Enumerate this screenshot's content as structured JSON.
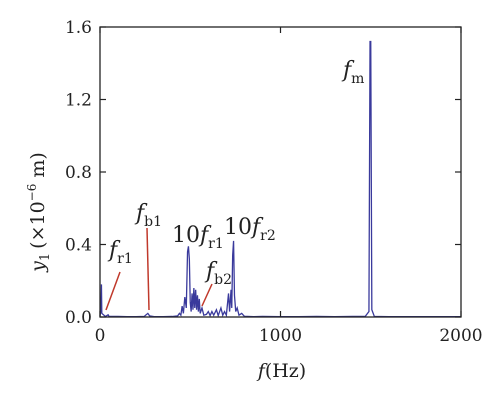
{
  "chart_data": {
    "type": "line",
    "xlabel": {
      "var": "f",
      "unit": "(Hz)"
    },
    "ylabel": {
      "var": "y",
      "sub": "1",
      "unit_pre": "(×10",
      "unit_exp": "−6",
      "unit_post": " m)"
    },
    "xlim": [
      0,
      2000
    ],
    "ylim": [
      0,
      1.6
    ],
    "xticks": [
      0,
      1000,
      2000
    ],
    "xtick_labels": [
      "0",
      "1000",
      "2000"
    ],
    "yticks": [
      0.0,
      0.4,
      0.8,
      1.2,
      1.6
    ],
    "ytick_labels": [
      "0.0",
      "0.4",
      "0.8",
      "1.2",
      "1.6"
    ],
    "grid": false,
    "series": [
      {
        "color": "#3a3a9c",
        "points": [
          [
            0,
            0.005
          ],
          [
            5,
            0.04
          ],
          [
            8,
            0.18
          ],
          [
            10,
            0.02
          ],
          [
            30,
            0.003
          ],
          [
            45,
            0.012
          ],
          [
            50,
            0.003
          ],
          [
            100,
            0.003
          ],
          [
            150,
            0.002
          ],
          [
            200,
            0.002
          ],
          [
            245,
            0.003
          ],
          [
            255,
            0.012
          ],
          [
            265,
            0.02
          ],
          [
            275,
            0.006
          ],
          [
            300,
            0.002
          ],
          [
            350,
            0.002
          ],
          [
            400,
            0.003
          ],
          [
            430,
            0.006
          ],
          [
            440,
            0.02
          ],
          [
            448,
            0.01
          ],
          [
            455,
            0.06
          ],
          [
            462,
            0.02
          ],
          [
            470,
            0.11
          ],
          [
            478,
            0.05
          ],
          [
            485,
            0.36
          ],
          [
            490,
            0.39
          ],
          [
            495,
            0.32
          ],
          [
            500,
            0.08
          ],
          [
            505,
            0.03
          ],
          [
            510,
            0.13
          ],
          [
            515,
            0.04
          ],
          [
            520,
            0.16
          ],
          [
            525,
            0.05
          ],
          [
            530,
            0.15
          ],
          [
            535,
            0.04
          ],
          [
            540,
            0.12
          ],
          [
            545,
            0.03
          ],
          [
            550,
            0.1
          ],
          [
            555,
            0.02
          ],
          [
            565,
            0.05
          ],
          [
            575,
            0.01
          ],
          [
            590,
            0.015
          ],
          [
            600,
            0.03
          ],
          [
            610,
            0.008
          ],
          [
            620,
            0.03
          ],
          [
            630,
            0.01
          ],
          [
            645,
            0.04
          ],
          [
            655,
            0.008
          ],
          [
            670,
            0.05
          ],
          [
            680,
            0.01
          ],
          [
            690,
            0.03
          ],
          [
            700,
            0.01
          ],
          [
            712,
            0.13
          ],
          [
            718,
            0.03
          ],
          [
            726,
            0.15
          ],
          [
            730,
            0.05
          ],
          [
            735,
            0.34
          ],
          [
            740,
            0.42
          ],
          [
            745,
            0.12
          ],
          [
            752,
            0.03
          ],
          [
            760,
            0.05
          ],
          [
            770,
            0.01
          ],
          [
            785,
            0.02
          ],
          [
            800,
            0.004
          ],
          [
            850,
            0.002
          ],
          [
            900,
            0.003
          ],
          [
            1000,
            0.002
          ],
          [
            1100,
            0.002
          ],
          [
            1200,
            0.003
          ],
          [
            1300,
            0.002
          ],
          [
            1400,
            0.003
          ],
          [
            1470,
            0.004
          ],
          [
            1490,
            0.03
          ],
          [
            1496,
            1.52
          ],
          [
            1500,
            1.52
          ],
          [
            1506,
            0.04
          ],
          [
            1520,
            0.003
          ],
          [
            1600,
            0.002
          ],
          [
            1700,
            0.002
          ],
          [
            1800,
            0.002
          ],
          [
            1900,
            0.002
          ],
          [
            2000,
            0.002
          ]
        ]
      }
    ],
    "annotations": [
      {
        "id": "fm",
        "main": "f",
        "sub": "m",
        "prefix": ""
      },
      {
        "id": "fb1",
        "main": "f",
        "sub": "b1",
        "prefix": ""
      },
      {
        "id": "fr1",
        "main": "f",
        "sub": "r1",
        "prefix": ""
      },
      {
        "id": "10fr1",
        "main": "f",
        "sub": "r1",
        "prefix": "10"
      },
      {
        "id": "fb2",
        "main": "f",
        "sub": "b2",
        "prefix": ""
      },
      {
        "id": "10fr2",
        "main": "f",
        "sub": "r2",
        "prefix": "10"
      }
    ],
    "colors": {
      "series": "#3a3a9c",
      "pointer": "#c0392b",
      "axis": "#222222"
    }
  }
}
